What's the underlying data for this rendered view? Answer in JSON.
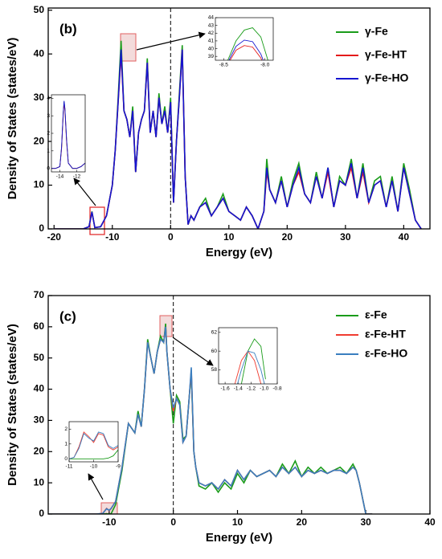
{
  "chart_data": [
    {
      "type": "line",
      "label": "(b)",
      "xlabel": "Energy (eV)",
      "ylabel": "Density of States (states/eV)",
      "vline": 0,
      "xlim": [
        -21,
        44.5
      ],
      "ylim": [
        0,
        50.5
      ],
      "xticks": [
        -20,
        -10,
        0,
        10,
        20,
        30,
        40
      ],
      "yticks": [
        0,
        10,
        20,
        30,
        40,
        50
      ],
      "x": [
        -20,
        -15,
        -14,
        -13.5,
        -13,
        -12,
        -11,
        -10,
        -9.5,
        -9,
        -8.5,
        -8,
        -7.5,
        -7,
        -6.5,
        -6,
        -5.5,
        -5,
        -4.5,
        -4,
        -3.5,
        -3,
        -2.5,
        -2,
        -1.5,
        -1,
        -0.5,
        0,
        0.5,
        1,
        1.5,
        2,
        2.5,
        3,
        3.5,
        4,
        5,
        6,
        7,
        8,
        9,
        10,
        11,
        12,
        13,
        14,
        15,
        16,
        16.5,
        17,
        18,
        19,
        20,
        21,
        22,
        23,
        24,
        25,
        26,
        27,
        28,
        29,
        30,
        31,
        32,
        33,
        34,
        35,
        36,
        37,
        38,
        39,
        40,
        41,
        42,
        43
      ],
      "series": [
        {
          "name": "γ-Fe",
          "color": "#1a9c1a",
          "values": [
            0,
            0,
            0.5,
            4,
            0.3,
            0.5,
            3,
            10,
            18,
            30,
            43,
            27,
            25,
            21,
            28,
            13,
            22,
            25,
            27,
            39,
            22,
            27,
            21,
            31,
            24,
            28,
            22,
            30,
            6,
            20,
            31,
            42,
            12,
            1,
            3,
            2,
            5,
            7,
            3,
            5,
            8,
            4,
            3,
            2,
            5,
            3,
            0,
            4,
            16,
            9,
            6,
            12,
            5,
            11,
            15,
            8,
            6,
            13,
            7,
            14,
            5,
            12,
            10,
            16,
            7,
            15,
            6,
            11,
            12,
            5,
            12,
            4,
            15,
            9,
            2,
            0
          ]
        },
        {
          "name": "γ-Fe-HT",
          "color": "#e41a1a",
          "values": [
            0,
            0,
            0.5,
            3.8,
            0.3,
            0.5,
            3,
            10,
            18,
            29,
            40,
            27,
            25,
            21,
            27,
            13,
            22,
            25,
            27,
            38,
            22,
            27,
            21,
            30,
            24,
            27,
            22,
            29,
            6,
            20,
            30,
            41,
            12,
            1,
            3,
            2,
            5,
            6,
            3,
            5,
            7,
            4,
            3,
            2,
            5,
            3,
            0,
            4,
            13,
            9,
            6,
            11,
            5,
            10,
            13,
            8,
            6,
            12,
            7,
            13,
            5,
            11,
            10,
            14,
            7,
            13,
            6,
            10,
            11,
            5,
            11,
            4,
            14,
            8,
            2,
            0
          ]
        },
        {
          "name": "γ-Fe-HO",
          "color": "#1515d0",
          "values": [
            0,
            0,
            0.5,
            3.9,
            0.3,
            0.5,
            3,
            10,
            18,
            29,
            41,
            27,
            25,
            21,
            27,
            13,
            22,
            25,
            27,
            38,
            22,
            27,
            21,
            30,
            24,
            27,
            22,
            29,
            6,
            20,
            30,
            41,
            12,
            1,
            3,
            2,
            5,
            6,
            3,
            5,
            7,
            4,
            3,
            2,
            5,
            3,
            0,
            4,
            14,
            9,
            6,
            11,
            5,
            10,
            14,
            8,
            6,
            12,
            7,
            14,
            5,
            11,
            10,
            15,
            7,
            14,
            6,
            10,
            11,
            5,
            11,
            4,
            14,
            8,
            2,
            0
          ]
        }
      ],
      "legend": "upper right"
    },
    {
      "type": "line",
      "xlim": [
        -8.6,
        -7.9
      ],
      "ylim": [
        38.5,
        44
      ],
      "xticks": [
        -8.5,
        {
          "value": -8,
          "label": "-8.0"
        }
      ],
      "yticks": [
        39,
        40,
        41,
        42,
        43,
        44
      ],
      "x": [
        -8.45,
        -8.35,
        -8.25,
        -8.15,
        -8.05,
        -7.95
      ],
      "series": [
        {
          "color": "#1a9c1a",
          "values": [
            38.5,
            41,
            42.4,
            42.7,
            41.5,
            38
          ]
        },
        {
          "color": "#e41a1a",
          "values": [
            38,
            39.8,
            40.4,
            40.2,
            38.8,
            36
          ]
        },
        {
          "color": "#1515d0",
          "values": [
            38.2,
            40.3,
            41.1,
            40.9,
            39.3,
            36.5
          ]
        }
      ]
    },
    {
      "type": "line",
      "xlim": [
        -15,
        -11
      ],
      "ylim": [
        -0.2,
        4.2
      ],
      "xticks": [
        -14,
        -12
      ],
      "yticks": [
        0,
        1,
        2,
        3,
        4
      ],
      "x": [
        -15,
        -14.5,
        -14,
        -13.8,
        -13.6,
        -13.5,
        -13.4,
        -13.2,
        -13,
        -12.5,
        -12,
        -11.5,
        -11
      ],
      "series": [
        {
          "color": "#1a9c1a",
          "values": [
            0,
            0,
            0.1,
            1.2,
            3.2,
            3.8,
            3.4,
            1.6,
            0.3,
            0,
            0,
            0.1,
            0.3
          ]
        },
        {
          "color": "#e41a1a",
          "values": [
            0,
            0,
            0.1,
            1.1,
            3.1,
            3.7,
            3.3,
            1.5,
            0.3,
            0,
            0,
            0.1,
            0.3
          ]
        },
        {
          "color": "#1515d0",
          "values": [
            0,
            0,
            0.1,
            1.2,
            3.2,
            3.85,
            3.4,
            1.6,
            0.3,
            0,
            0,
            0.1,
            0.3
          ]
        }
      ]
    },
    {
      "type": "line",
      "label": "(c)",
      "xlabel": "Energy (eV)",
      "ylabel": "Density of States (states/eV)",
      "vline": 0,
      "xlim": [
        -19.5,
        40
      ],
      "ylim": [
        0,
        70
      ],
      "xticks": [
        -10,
        0,
        10,
        20,
        30,
        40
      ],
      "yticks": [
        0,
        10,
        20,
        30,
        40,
        50,
        60,
        70
      ],
      "x": [
        -19.5,
        -12,
        -11,
        -10.4,
        -10,
        -9.7,
        -9,
        -8,
        -7,
        -6,
        -5.5,
        -5,
        -4.5,
        -4,
        -3.5,
        -3,
        -2.5,
        -2,
        -1.5,
        -1.2,
        -1,
        -0.5,
        0,
        0.5,
        1,
        1.5,
        2,
        2.5,
        2.8,
        3.2,
        3.5,
        4,
        5,
        6,
        7,
        8,
        9,
        10,
        11,
        12,
        13,
        14,
        15,
        16,
        17,
        18,
        19,
        20,
        21,
        22,
        23,
        24,
        25,
        26,
        27,
        28,
        28.5,
        29,
        30,
        31
      ],
      "series": [
        {
          "name": "ε-Fe",
          "color": "#1a9c1a",
          "values": [
            0,
            0,
            0,
            0.1,
            0,
            0.1,
            3,
            14,
            29,
            26,
            33,
            28,
            40,
            56,
            50,
            45,
            52,
            57,
            55,
            61,
            52,
            40,
            29,
            38,
            36,
            24,
            25,
            38,
            45,
            20,
            15,
            9,
            8,
            10,
            7,
            10,
            8,
            13,
            10,
            14,
            12,
            13,
            14,
            12,
            16,
            13,
            17,
            12,
            15,
            13,
            15,
            13,
            14,
            15,
            13,
            16,
            14,
            10,
            0,
            0
          ]
        },
        {
          "name": "ε-Fe-HT",
          "color": "#f03c30",
          "values": [
            0,
            0,
            0.2,
            1.8,
            1.1,
            1.7,
            4,
            15,
            29,
            26,
            32,
            28,
            40,
            55,
            50,
            45,
            52,
            56,
            55,
            60,
            52,
            40,
            33,
            37,
            35,
            23,
            25,
            38,
            46,
            20,
            15,
            10,
            9,
            10,
            8,
            11,
            9,
            14,
            11,
            14,
            12,
            13,
            14,
            12,
            15,
            13,
            15,
            12,
            14,
            13,
            14,
            13,
            14,
            14,
            13,
            15,
            14,
            10,
            0,
            0
          ]
        },
        {
          "name": "ε-Fe-HO",
          "color": "#3a7ebf",
          "values": [
            0,
            0,
            0.2,
            1.7,
            1.2,
            1.8,
            4,
            15,
            29,
            26,
            32,
            28,
            40,
            55,
            50,
            45,
            52,
            56,
            55,
            60,
            52,
            40,
            34,
            37,
            35,
            23,
            25,
            38,
            47,
            20,
            15,
            10,
            9,
            10,
            8,
            11,
            9,
            14,
            11,
            14,
            12,
            13,
            14,
            12,
            15,
            13,
            15,
            12,
            14,
            13,
            14,
            13,
            14,
            14,
            13,
            15,
            14,
            10,
            0,
            0
          ]
        }
      ],
      "legend": "upper right"
    },
    {
      "type": "line",
      "xlim": [
        -1.7,
        -0.8
      ],
      "ylim": [
        56.5,
        62.5
      ],
      "xticks": [
        -1.6,
        -1.4,
        -1.2,
        {
          "value": -1,
          "label": "-1.0"
        },
        -0.8
      ],
      "yticks": [
        58,
        60,
        62
      ],
      "x": [
        -1.45,
        -1.35,
        -1.25,
        -1.15,
        -1.05,
        -0.98
      ],
      "series": [
        {
          "color": "#1a9c1a",
          "values": [
            54,
            56.5,
            60,
            61.3,
            60.5,
            57
          ]
        },
        {
          "color": "#f03c30",
          "values": [
            56.5,
            59,
            60,
            59,
            56.5,
            54
          ]
        },
        {
          "color": "#3a7ebf",
          "values": [
            55.5,
            58,
            60,
            59.8,
            58,
            56
          ]
        }
      ]
    },
    {
      "type": "line",
      "xlim": [
        -11,
        -9
      ],
      "ylim": [
        -0.2,
        2.5
      ],
      "xticks": [
        -11,
        -10,
        -9
      ],
      "yticks": [
        0,
        1,
        2
      ],
      "x": [
        -11,
        -10.8,
        -10.6,
        -10.4,
        -10.2,
        -10,
        -9.8,
        -9.6,
        -9.4,
        -9.2,
        -9
      ],
      "series": [
        {
          "color": "#1a9c1a",
          "values": [
            0,
            0,
            0,
            0,
            0,
            0,
            0,
            0,
            0.05,
            0.2,
            0.6
          ]
        },
        {
          "color": "#f03c30",
          "values": [
            0,
            0.1,
            0.8,
            1.8,
            1.5,
            1.1,
            1.7,
            1.6,
            0.8,
            0.6,
            0.8
          ]
        },
        {
          "color": "#3a7ebf",
          "values": [
            0,
            0.1,
            0.7,
            1.7,
            1.4,
            1.2,
            1.8,
            1.7,
            0.9,
            0.7,
            0.9
          ]
        }
      ]
    }
  ]
}
